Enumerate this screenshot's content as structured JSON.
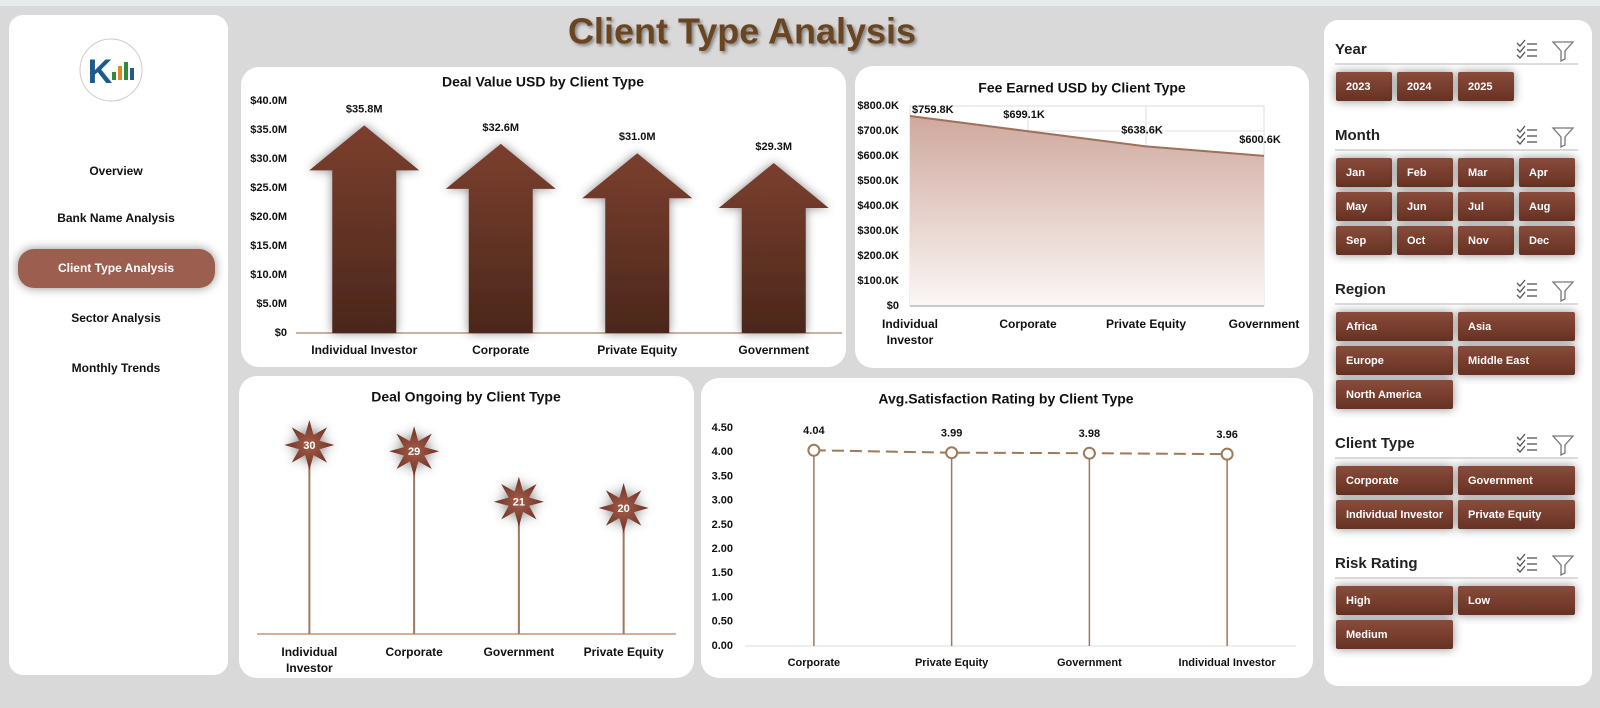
{
  "header": {
    "title": "Client Type Analysis"
  },
  "nav": {
    "items": [
      "Overview",
      "Bank Name Analysis",
      "Client Type Analysis",
      "Sector Analysis",
      "Monthly Trends"
    ]
  },
  "chart_data": [
    {
      "type": "bar",
      "title": "Deal Value USD by Client Type",
      "color": "#6e3a2b",
      "categories": [
        "Individual Investor",
        "Corporate",
        "Private Equity",
        "Government"
      ],
      "values": [
        35.8,
        32.6,
        31.0,
        29.3
      ],
      "value_labels": [
        "$35.8M",
        "$32.6M",
        "$31.0M",
        "$29.3M"
      ],
      "ylim": [
        0,
        40
      ],
      "yticks": [
        {
          "value": 0,
          "label": "$0"
        },
        {
          "value": 5,
          "label": "$5.0M"
        },
        {
          "value": 10,
          "label": "$10.0M"
        },
        {
          "value": 15,
          "label": "$15.0M"
        },
        {
          "value": 20,
          "label": "$20.0M"
        },
        {
          "value": 25,
          "label": "$25.0M"
        },
        {
          "value": 30,
          "label": "$30.0M"
        },
        {
          "value": 35,
          "label": "$35.0M"
        },
        {
          "value": 40,
          "label": "$40.0M"
        }
      ]
    },
    {
      "type": "area",
      "title": "Fee Earned USD by Client Type",
      "color": "#a0705a",
      "categories": [
        "Individual Investor",
        "Corporate",
        "Private Equity",
        "Government"
      ],
      "values": [
        759.8,
        699.1,
        638.6,
        600.6
      ],
      "value_labels": [
        "$759.8K",
        "$699.1K",
        "$638.6K",
        "$600.6K"
      ],
      "ylim": [
        0,
        800
      ],
      "yticks": [
        {
          "value": 0,
          "label": "$0"
        },
        {
          "value": 100,
          "label": "$100.0K"
        },
        {
          "value": 200,
          "label": "$200.0K"
        },
        {
          "value": 300,
          "label": "$300.0K"
        },
        {
          "value": 400,
          "label": "$400.0K"
        },
        {
          "value": 500,
          "label": "$500.0K"
        },
        {
          "value": 600,
          "label": "$600.0K"
        },
        {
          "value": 700,
          "label": "$700.0K"
        },
        {
          "value": 800,
          "label": "$800.0K"
        }
      ],
      "grid": true
    },
    {
      "type": "lollipop",
      "title": "Deal Ongoing by Client Type",
      "color": "#8b4a3a",
      "categories": [
        "Individual Investor",
        "Corporate",
        "Government",
        "Private Equity"
      ],
      "values": [
        30,
        29,
        21,
        20
      ]
    },
    {
      "type": "line",
      "title": "Avg.Satisfaction Rating by Client Type",
      "color": "#9c7a5a",
      "categories": [
        "Corporate",
        "Private Equity",
        "Government",
        "Individual Investor"
      ],
      "values": [
        4.04,
        3.99,
        3.98,
        3.96
      ],
      "ylim": [
        0,
        4.5
      ],
      "yticks": [
        {
          "value": 0,
          "label": "0.00"
        },
        {
          "value": 0.5,
          "label": "0.50"
        },
        {
          "value": 1,
          "label": "1.00"
        },
        {
          "value": 1.5,
          "label": "1.50"
        },
        {
          "value": 2,
          "label": "2.00"
        },
        {
          "value": 2.5,
          "label": "2.50"
        },
        {
          "value": 3,
          "label": "3.00"
        },
        {
          "value": 3.5,
          "label": "3.50"
        },
        {
          "value": 4,
          "label": "4.00"
        },
        {
          "value": 4.5,
          "label": "4.50"
        }
      ]
    }
  ],
  "slicers": [
    {
      "title": "Year",
      "items": [
        "2023",
        "2024",
        "2025"
      ]
    },
    {
      "title": "Month",
      "items": [
        "Jan",
        "Feb",
        "Mar",
        "Apr",
        "May",
        "Jun",
        "Jul",
        "Aug",
        "Sep",
        "Oct",
        "Nov",
        "Dec"
      ]
    },
    {
      "title": "Region",
      "items": [
        "Africa",
        "Asia",
        "Europe",
        "Middle East",
        "North America"
      ]
    },
    {
      "title": "Client Type",
      "items": [
        "Corporate",
        "Government",
        "Individual Investor",
        "Private Equity"
      ]
    },
    {
      "title": "Risk Rating",
      "items": [
        "High",
        "Low",
        "Medium"
      ]
    }
  ]
}
